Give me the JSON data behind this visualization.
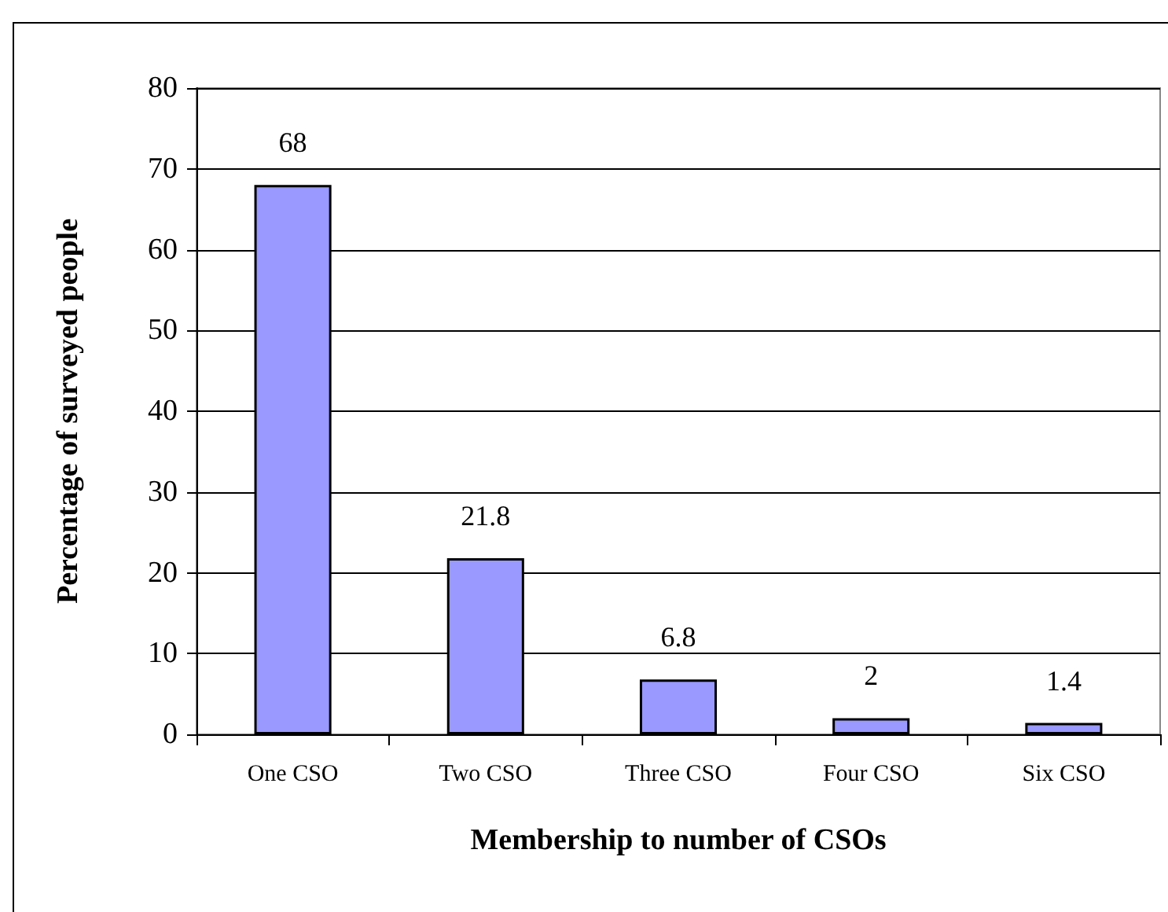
{
  "chart_data": {
    "type": "bar",
    "xlabel": "Membership to number of CSOs",
    "ylabel": "Percentage of surveyed people",
    "categories": [
      "One CSO",
      "Two CSO",
      "Three CSO",
      "Four CSO",
      "Six CSO"
    ],
    "values": [
      68,
      21.8,
      6.8,
      2,
      1.4
    ],
    "color": "#9999ff",
    "ylim": [
      0,
      80
    ],
    "yticks": [
      0,
      10,
      20,
      30,
      40,
      50,
      60,
      70,
      80
    ],
    "grid": "y",
    "data_labels": true
  }
}
